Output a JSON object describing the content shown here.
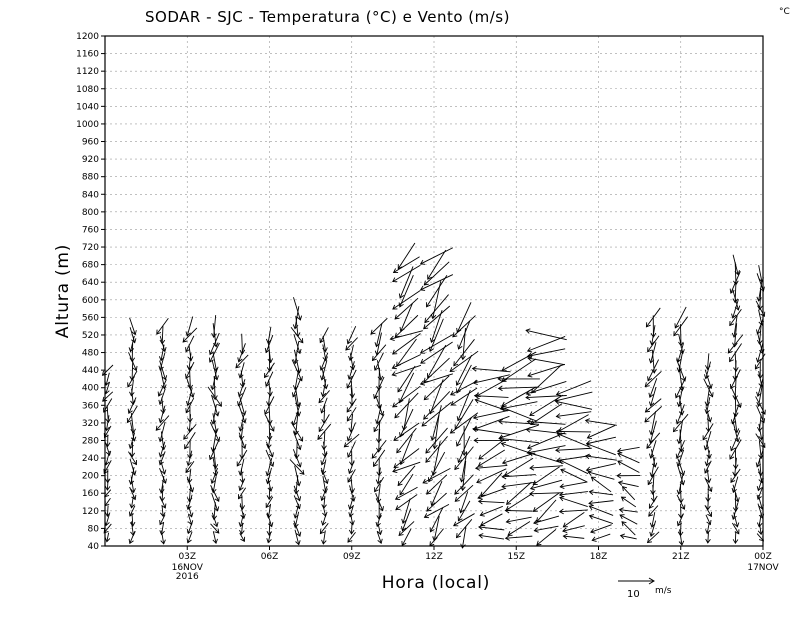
{
  "chart_data": {
    "type": "wind-barb-profile",
    "title": "SODAR - SJC - Temperatura (°C) e Vento (m/s)",
    "corner_unit": "°C",
    "xlabel": "Hora (local)",
    "ylabel": "Altura (m)",
    "ylim": [
      40,
      1200
    ],
    "ytick_step": 40,
    "xlim_hours": [
      0,
      24
    ],
    "grid": true,
    "x_ticks": [
      {
        "hour": 3,
        "label": "03Z",
        "sub": [
          "16NOV",
          "2016"
        ]
      },
      {
        "hour": 6,
        "label": "06Z",
        "sub": []
      },
      {
        "hour": 9,
        "label": "09Z",
        "sub": []
      },
      {
        "hour": 12,
        "label": "12Z",
        "sub": []
      },
      {
        "hour": 15,
        "label": "15Z",
        "sub": []
      },
      {
        "hour": 18,
        "label": "18Z",
        "sub": []
      },
      {
        "hour": 21,
        "label": "21Z",
        "sub": []
      },
      {
        "hour": 24,
        "label": "00Z",
        "sub": [
          "17NOV"
        ]
      }
    ],
    "reference_vector": {
      "value": 10,
      "label": "10",
      "unit": "m/s"
    },
    "profile_step_m": 20,
    "profiles": [
      {
        "hour": 0.1,
        "top": 440,
        "dir": 190,
        "speed": 4
      },
      {
        "hour": 1.0,
        "top": 540,
        "dir": 175,
        "speed": 5
      },
      {
        "hour": 2.1,
        "top": 540,
        "dir": 180,
        "speed": 5
      },
      {
        "hour": 3.1,
        "top": 540,
        "dir": 185,
        "speed": 5
      },
      {
        "hour": 4.0,
        "top": 540,
        "dir": 170,
        "speed": 6
      },
      {
        "hour": 5.0,
        "top": 500,
        "dir": 180,
        "speed": 5
      },
      {
        "hour": 6.0,
        "top": 520,
        "dir": 175,
        "speed": 5
      },
      {
        "hour": 7.0,
        "top": 580,
        "dir": 165,
        "speed": 6
      },
      {
        "hour": 8.0,
        "top": 520,
        "dir": 185,
        "speed": 5
      },
      {
        "hour": 9.0,
        "top": 520,
        "dir": 190,
        "speed": 5
      },
      {
        "hour": 10.0,
        "top": 540,
        "dir": 185,
        "speed": 6
      },
      {
        "hour": 11.0,
        "top": 700,
        "dir": 215,
        "speed": 9
      },
      {
        "hour": 12.1,
        "top": 700,
        "dir": 210,
        "speed": 10
      },
      {
        "hour": 13.1,
        "top": 560,
        "dir": 205,
        "speed": 9
      },
      {
        "hour": 14.1,
        "top": 440,
        "dir": 250,
        "speed": 10
      },
      {
        "hour": 15.1,
        "top": 460,
        "dir": 255,
        "speed": 11
      },
      {
        "hour": 16.1,
        "top": 520,
        "dir": 250,
        "speed": 11
      },
      {
        "hour": 17.1,
        "top": 400,
        "dir": 265,
        "speed": 10
      },
      {
        "hour": 18.1,
        "top": 320,
        "dir": 270,
        "speed": 9
      },
      {
        "hour": 19.1,
        "top": 260,
        "dir": 285,
        "speed": 7
      },
      {
        "hour": 20.0,
        "top": 560,
        "dir": 195,
        "speed": 6
      },
      {
        "hour": 21.0,
        "top": 560,
        "dir": 180,
        "speed": 6
      },
      {
        "hour": 22.0,
        "top": 460,
        "dir": 175,
        "speed": 5
      },
      {
        "hour": 23.0,
        "top": 680,
        "dir": 180,
        "speed": 6
      },
      {
        "hour": 23.9,
        "top": 660,
        "dir": 170,
        "speed": 5
      }
    ]
  }
}
